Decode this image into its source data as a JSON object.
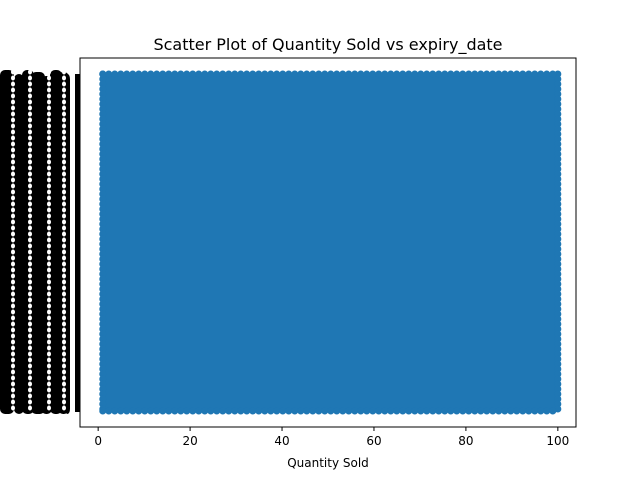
{
  "chart_data": {
    "type": "scatter",
    "title": "Scatter Plot of Quantity Sold vs expiry_date",
    "xlabel": "Quantity Sold",
    "ylabel": "",
    "xlim": [
      -3.95,
      103.95
    ],
    "x_ticks": [
      0,
      20,
      40,
      60,
      80,
      100
    ],
    "x_range": [
      1,
      100
    ],
    "y_description": "expiry_date (categorical, many overlapping unreadable tick labels)",
    "grid": false,
    "legend": "none",
    "series": [
      {
        "marker_color": "#1f77b4"
      }
    ]
  }
}
